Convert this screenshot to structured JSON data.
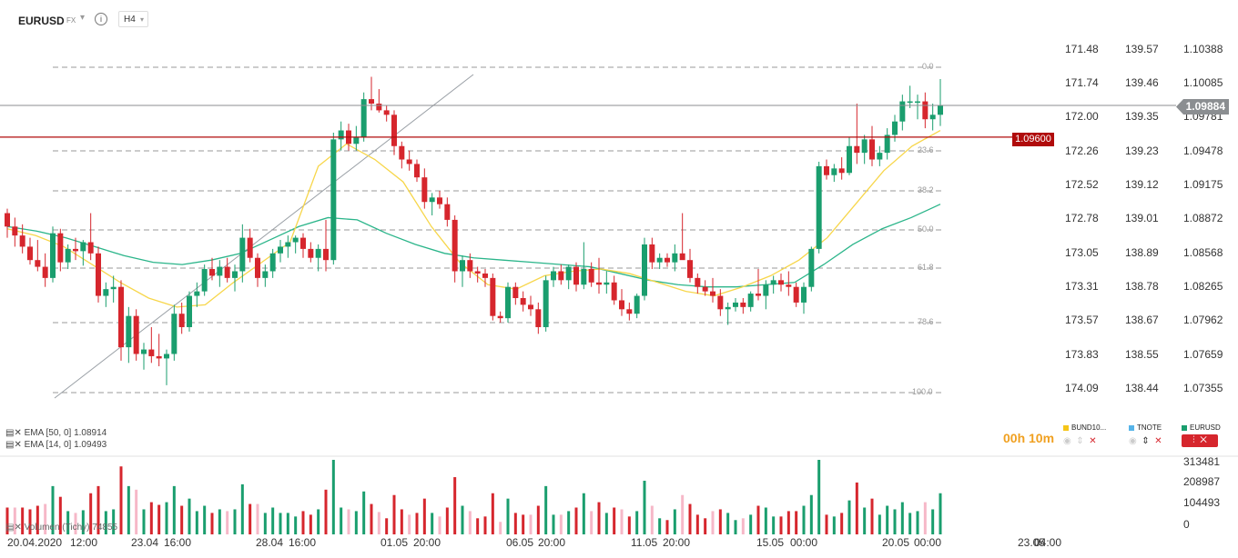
{
  "header": {
    "symbol": "EURUSD",
    "market": "FX",
    "info_icon": "i",
    "timeframe": "H4"
  },
  "axes": {
    "bund": [
      "171.48",
      "171.74",
      "172.00",
      "172.26",
      "172.52",
      "172.78",
      "173.05",
      "173.31",
      "173.57",
      "173.83",
      "174.09"
    ],
    "tnote": [
      "139.57",
      "139.46",
      "139.35",
      "139.23",
      "139.12",
      "139.01",
      "138.89",
      "138.78",
      "138.67",
      "138.55",
      "138.44"
    ],
    "eurusd": [
      "1.10388",
      "1.10085",
      "1.09781",
      "1.09478",
      "1.09175",
      "1.08872",
      "1.08568",
      "1.08265",
      "1.07962",
      "1.07659",
      "1.07355"
    ]
  },
  "current_price": "1.09884",
  "hline_price": "1.09600",
  "fib_levels": [
    "0.0",
    "23.6",
    "38.2",
    "50.0",
    "61.8",
    "78.6",
    "100.0"
  ],
  "indicators": {
    "ema50": "EMA [50, 0]  1.08914",
    "ema14": "EMA [14, 0]  1.09493"
  },
  "timer": "00h 10m",
  "comparisons": [
    {
      "name": "BUND10...",
      "color": "#f5c518"
    },
    {
      "name": "TNOTE",
      "color": "#56b4e9"
    },
    {
      "name": "EURUSD",
      "color": "#1a9e6e"
    }
  ],
  "volume": {
    "label": "Volumen  (Tichy)  74855",
    "axis": [
      "313481",
      "208987",
      "104493",
      "0"
    ]
  },
  "dates": [
    "20.04.2020",
    "12:00",
    "23.04",
    "16:00",
    "28.04",
    "16:00",
    "01.05",
    "20:00",
    "06.05",
    "20:00",
    "11.05",
    "20:00",
    "15.05",
    "00:00",
    "20.05",
    "00:00",
    "23.05",
    "04:00"
  ],
  "colors": {
    "up": "#1a9e6e",
    "down": "#d6262d",
    "ema14": "#f7d64a",
    "ema50": "#2bb58a",
    "hline": "#b00b0b"
  },
  "chart_data": {
    "type": "candlestick",
    "title": "EURUSD",
    "timeframe": "H4",
    "x_labels": [
      "20.04.2020 12:00",
      "23.04 16:00",
      "28.04 16:00",
      "01.05 20:00",
      "06.05 20:00",
      "11.05 20:00",
      "15.05 00:00",
      "20.05 00:00",
      "23.05 04:00"
    ],
    "ylim": [
      1.0714,
      1.1053
    ],
    "candles": [
      [
        1.0892,
        1.0896,
        1.087,
        1.088
      ],
      [
        1.088,
        1.0888,
        1.0862,
        1.0872
      ],
      [
        1.0872,
        1.0882,
        1.0856,
        1.0862
      ],
      [
        1.0862,
        1.087,
        1.0846,
        1.085
      ],
      [
        1.085,
        1.0868,
        1.084,
        1.0844
      ],
      [
        1.0844,
        1.0856,
        1.0826,
        1.0834
      ],
      [
        1.0834,
        1.088,
        1.083,
        1.0874
      ],
      [
        1.0874,
        1.0878,
        1.084,
        1.0848
      ],
      [
        1.0848,
        1.0864,
        1.0842,
        1.086
      ],
      [
        1.086,
        1.087,
        1.085,
        1.0858
      ],
      [
        1.0858,
        1.0868,
        1.0845,
        1.0866
      ],
      [
        1.0866,
        1.0892,
        1.085,
        1.0856
      ],
      [
        1.0856,
        1.0862,
        1.0812,
        1.0818
      ],
      [
        1.0818,
        1.083,
        1.0808,
        1.0824
      ],
      [
        1.0824,
        1.0836,
        1.0812,
        1.0826
      ],
      [
        1.0826,
        1.0832,
        1.076,
        1.0772
      ],
      [
        1.0772,
        1.0808,
        1.0758,
        1.08
      ],
      [
        1.08,
        1.0806,
        1.076,
        1.0766
      ],
      [
        1.0766,
        1.0776,
        1.0752,
        1.077
      ],
      [
        1.077,
        1.079,
        1.0758,
        1.0764
      ],
      [
        1.0764,
        1.0784,
        1.0755,
        1.0762
      ],
      [
        1.0762,
        1.077,
        1.0738,
        1.0766
      ],
      [
        1.0766,
        1.081,
        1.076,
        1.0802
      ],
      [
        1.0802,
        1.0812,
        1.0784,
        1.079
      ],
      [
        1.079,
        1.0822,
        1.0786,
        1.0818
      ],
      [
        1.0818,
        1.083,
        1.0808,
        1.0822
      ],
      [
        1.0822,
        1.0846,
        1.0818,
        1.0842
      ],
      [
        1.0842,
        1.0852,
        1.0832,
        1.0836
      ],
      [
        1.0836,
        1.085,
        1.0826,
        1.0844
      ],
      [
        1.0844,
        1.0852,
        1.083,
        1.0834
      ],
      [
        1.0834,
        1.0846,
        1.0822,
        1.084
      ],
      [
        1.084,
        1.0882,
        1.083,
        1.087
      ],
      [
        1.087,
        1.0878,
        1.0848,
        1.0852
      ],
      [
        1.0852,
        1.0856,
        1.0826,
        1.0834
      ],
      [
        1.0834,
        1.0846,
        1.0826,
        1.084
      ],
      [
        1.084,
        1.086,
        1.0834,
        1.0856
      ],
      [
        1.0856,
        1.0868,
        1.0848,
        1.0862
      ],
      [
        1.0862,
        1.0872,
        1.0852,
        1.0866
      ],
      [
        1.0866,
        1.0872,
        1.0856,
        1.087
      ],
      [
        1.087,
        1.0874,
        1.0852,
        1.086
      ],
      [
        1.086,
        1.0866,
        1.0848,
        1.0852
      ],
      [
        1.0852,
        1.0864,
        1.084,
        1.086
      ],
      [
        1.086,
        1.0886,
        1.084,
        1.085
      ],
      [
        1.085,
        1.0964,
        1.0846,
        1.0958
      ],
      [
        1.0958,
        1.0974,
        1.0948,
        1.0966
      ],
      [
        1.0966,
        1.0972,
        1.0948,
        1.0954
      ],
      [
        1.0954,
        1.097,
        1.0948,
        1.096
      ],
      [
        1.096,
        1.1,
        1.0956,
        1.0994
      ],
      [
        1.0994,
        1.1014,
        1.0984,
        1.099
      ],
      [
        1.099,
        1.1003,
        1.0982,
        1.0984
      ],
      [
        1.0984,
        1.0988,
        1.0974,
        1.098
      ],
      [
        1.098,
        1.0984,
        1.0944,
        1.0952
      ],
      [
        1.0952,
        1.0956,
        1.0932,
        1.094
      ],
      [
        1.094,
        1.0948,
        1.093,
        1.0936
      ],
      [
        1.0936,
        1.094,
        1.092,
        1.0924
      ],
      [
        1.0924,
        1.0932,
        1.0896,
        1.0902
      ],
      [
        1.0902,
        1.091,
        1.089,
        1.0906
      ],
      [
        1.0906,
        1.0912,
        1.0896,
        1.09
      ],
      [
        1.09,
        1.0906,
        1.088,
        1.0886
      ],
      [
        1.0886,
        1.089,
        1.083,
        1.084
      ],
      [
        1.084,
        1.0854,
        1.0826,
        1.085
      ],
      [
        1.085,
        1.0856,
        1.0834,
        1.084
      ],
      [
        1.084,
        1.0844,
        1.083,
        1.0838
      ],
      [
        1.0838,
        1.0842,
        1.0826,
        1.0834
      ],
      [
        1.0834,
        1.0838,
        1.0796,
        1.08
      ],
      [
        1.08,
        1.0804,
        1.0794,
        1.0798
      ],
      [
        1.0798,
        1.083,
        1.0794,
        1.0826
      ],
      [
        1.0826,
        1.083,
        1.081,
        1.0816
      ],
      [
        1.0816,
        1.0822,
        1.0804,
        1.081
      ],
      [
        1.081,
        1.0818,
        1.08,
        1.0806
      ],
      [
        1.0806,
        1.0812,
        1.0784,
        1.079
      ],
      [
        1.079,
        1.0836,
        1.0786,
        1.0832
      ],
      [
        1.0832,
        1.0844,
        1.0826,
        1.084
      ],
      [
        1.084,
        1.0846,
        1.0828,
        1.0832
      ],
      [
        1.0832,
        1.0846,
        1.0824,
        1.0844
      ],
      [
        1.0844,
        1.0848,
        1.0822,
        1.0828
      ],
      [
        1.0828,
        1.0866,
        1.0824,
        1.0842
      ],
      [
        1.0842,
        1.0848,
        1.0826,
        1.083
      ],
      [
        1.083,
        1.0852,
        1.082,
        1.0828
      ],
      [
        1.0828,
        1.084,
        1.082,
        1.083
      ],
      [
        1.083,
        1.0836,
        1.081,
        1.0814
      ],
      [
        1.0814,
        1.0824,
        1.08,
        1.0806
      ],
      [
        1.0806,
        1.0812,
        1.0796,
        1.0802
      ],
      [
        1.0802,
        1.082,
        1.0798,
        1.0818
      ],
      [
        1.0818,
        1.087,
        1.0814,
        1.0864
      ],
      [
        1.0864,
        1.087,
        1.0842,
        1.0848
      ],
      [
        1.0848,
        1.0856,
        1.0842,
        1.0852
      ],
      [
        1.0852,
        1.0856,
        1.0844,
        1.0848
      ],
      [
        1.0848,
        1.0864,
        1.084,
        1.0856
      ],
      [
        1.0856,
        1.0892,
        1.0852,
        1.085
      ],
      [
        1.085,
        1.086,
        1.083,
        1.0834
      ],
      [
        1.0834,
        1.0838,
        1.082,
        1.0826
      ],
      [
        1.0826,
        1.0832,
        1.0818,
        1.0822
      ],
      [
        1.0822,
        1.0834,
        1.0812,
        1.0818
      ],
      [
        1.0818,
        1.0824,
        1.08,
        1.0806
      ],
      [
        1.0806,
        1.0812,
        1.0792,
        1.0808
      ],
      [
        1.0808,
        1.0816,
        1.0804,
        1.0812
      ],
      [
        1.0812,
        1.0816,
        1.0802,
        1.0808
      ],
      [
        1.0808,
        1.0822,
        1.0804,
        1.082
      ],
      [
        1.082,
        1.0842,
        1.0814,
        1.0818
      ],
      [
        1.0818,
        1.0832,
        1.0806,
        1.0828
      ],
      [
        1.0828,
        1.0836,
        1.082,
        1.0832
      ],
      [
        1.0832,
        1.0838,
        1.0822,
        1.0828
      ],
      [
        1.0828,
        1.084,
        1.0818,
        1.0826
      ],
      [
        1.0826,
        1.083,
        1.0808,
        1.0812
      ],
      [
        1.0812,
        1.083,
        1.0802,
        1.0826
      ],
      [
        1.0826,
        1.0862,
        1.0822,
        1.086
      ],
      [
        1.086,
        1.0938,
        1.0856,
        1.0934
      ],
      [
        1.0934,
        1.094,
        1.0922,
        1.0926
      ],
      [
        1.0926,
        1.0936,
        1.092,
        1.0932
      ],
      [
        1.0932,
        1.0942,
        1.0922,
        1.0928
      ],
      [
        1.0928,
        1.096,
        1.0926,
        1.0952
      ],
      [
        1.0952,
        1.099,
        1.0936,
        1.0946
      ],
      [
        1.0946,
        1.0962,
        1.0936,
        1.0958
      ],
      [
        1.0958,
        1.097,
        1.0934,
        1.094
      ],
      [
        1.094,
        1.0952,
        1.0934,
        1.0946
      ],
      [
        1.0946,
        1.0968,
        1.094,
        1.0962
      ],
      [
        1.0962,
        1.098,
        1.0956,
        1.0974
      ],
      [
        1.0974,
        1.0998,
        1.0966,
        1.0992
      ],
      [
        1.0992,
        1.1006,
        1.0986,
        1.0992
      ],
      [
        1.0992,
        1.0998,
        1.0976,
        1.0992
      ],
      [
        1.0992,
        1.1,
        1.0968,
        1.0976
      ],
      [
        1.0976,
        1.099,
        1.0966,
        1.098
      ],
      [
        1.098,
        1.1012,
        1.097,
        1.0988
      ]
    ],
    "ema14": [
      1.0878,
      1.0872,
      1.0862,
      1.0846,
      1.083,
      1.0816,
      1.0808,
      1.081,
      1.083,
      1.0848,
      1.0866,
      1.0934,
      1.0954,
      1.094,
      1.092,
      1.088,
      1.0848,
      1.0828,
      1.0824,
      1.0836,
      1.084,
      1.0842,
      1.0838,
      1.083,
      1.0822,
      1.0818,
      1.0826,
      1.0836,
      1.085,
      1.087,
      1.09,
      1.093,
      1.0952,
      1.0966
    ],
    "ema50": [
      1.088,
      1.0876,
      1.087,
      1.0862,
      1.0854,
      1.0848,
      1.0846,
      1.085,
      1.0856,
      1.0868,
      1.088,
      1.0888,
      1.0886,
      1.0874,
      1.0864,
      1.0856,
      1.0852,
      1.085,
      1.0848,
      1.0846,
      1.0844,
      1.0838,
      1.0832,
      1.0828,
      1.0826,
      1.0826,
      1.0828,
      1.083,
      1.0846,
      1.0864,
      1.0878,
      1.0888,
      1.09
    ],
    "volume_max": 313481,
    "volume_ylim": [
      0,
      313481
    ]
  }
}
